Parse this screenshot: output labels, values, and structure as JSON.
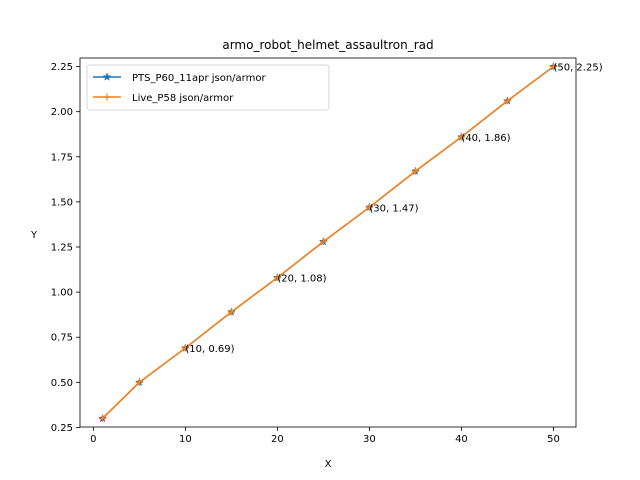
{
  "chart_data": {
    "type": "line",
    "title": "armo_robot_helmet_assaultron_rad",
    "xlabel": "X",
    "ylabel": "Y",
    "xlim": [
      -1.45,
      52.45
    ],
    "ylim": [
      0.2525,
      2.2975
    ],
    "xticks": [
      0,
      10,
      20,
      30,
      40,
      50
    ],
    "yticks": [
      0.25,
      0.5,
      0.75,
      1.0,
      1.25,
      1.5,
      1.75,
      2.0,
      2.25
    ],
    "ytick_labels": [
      "0.25",
      "0.50",
      "0.75",
      "1.00",
      "1.25",
      "1.50",
      "1.75",
      "2.00",
      "2.25"
    ],
    "legend_position": "top-left",
    "grid": false,
    "x": [
      1,
      5,
      10,
      15,
      20,
      25,
      30,
      35,
      40,
      45,
      50
    ],
    "series": [
      {
        "name": "PTS_P60_11apr json/armor",
        "color": "#1f77b4",
        "marker": "star",
        "values": [
          0.3,
          0.5,
          0.69,
          0.89,
          1.08,
          1.28,
          1.47,
          1.67,
          1.86,
          2.06,
          2.25
        ]
      },
      {
        "name": "Live_P58 json/armor",
        "color": "#ff7f0e",
        "marker": "plus",
        "values": [
          0.3,
          0.5,
          0.69,
          0.89,
          1.08,
          1.28,
          1.47,
          1.67,
          1.86,
          2.06,
          2.25
        ]
      }
    ],
    "annotations": [
      {
        "x": 10,
        "y": 0.69,
        "text": "(10, 0.69)"
      },
      {
        "x": 20,
        "y": 1.08,
        "text": "(20, 1.08)"
      },
      {
        "x": 30,
        "y": 1.47,
        "text": "(30, 1.47)"
      },
      {
        "x": 40,
        "y": 1.86,
        "text": "(40, 1.86)"
      },
      {
        "x": 50,
        "y": 2.25,
        "text": "(50, 2.25)"
      }
    ]
  }
}
